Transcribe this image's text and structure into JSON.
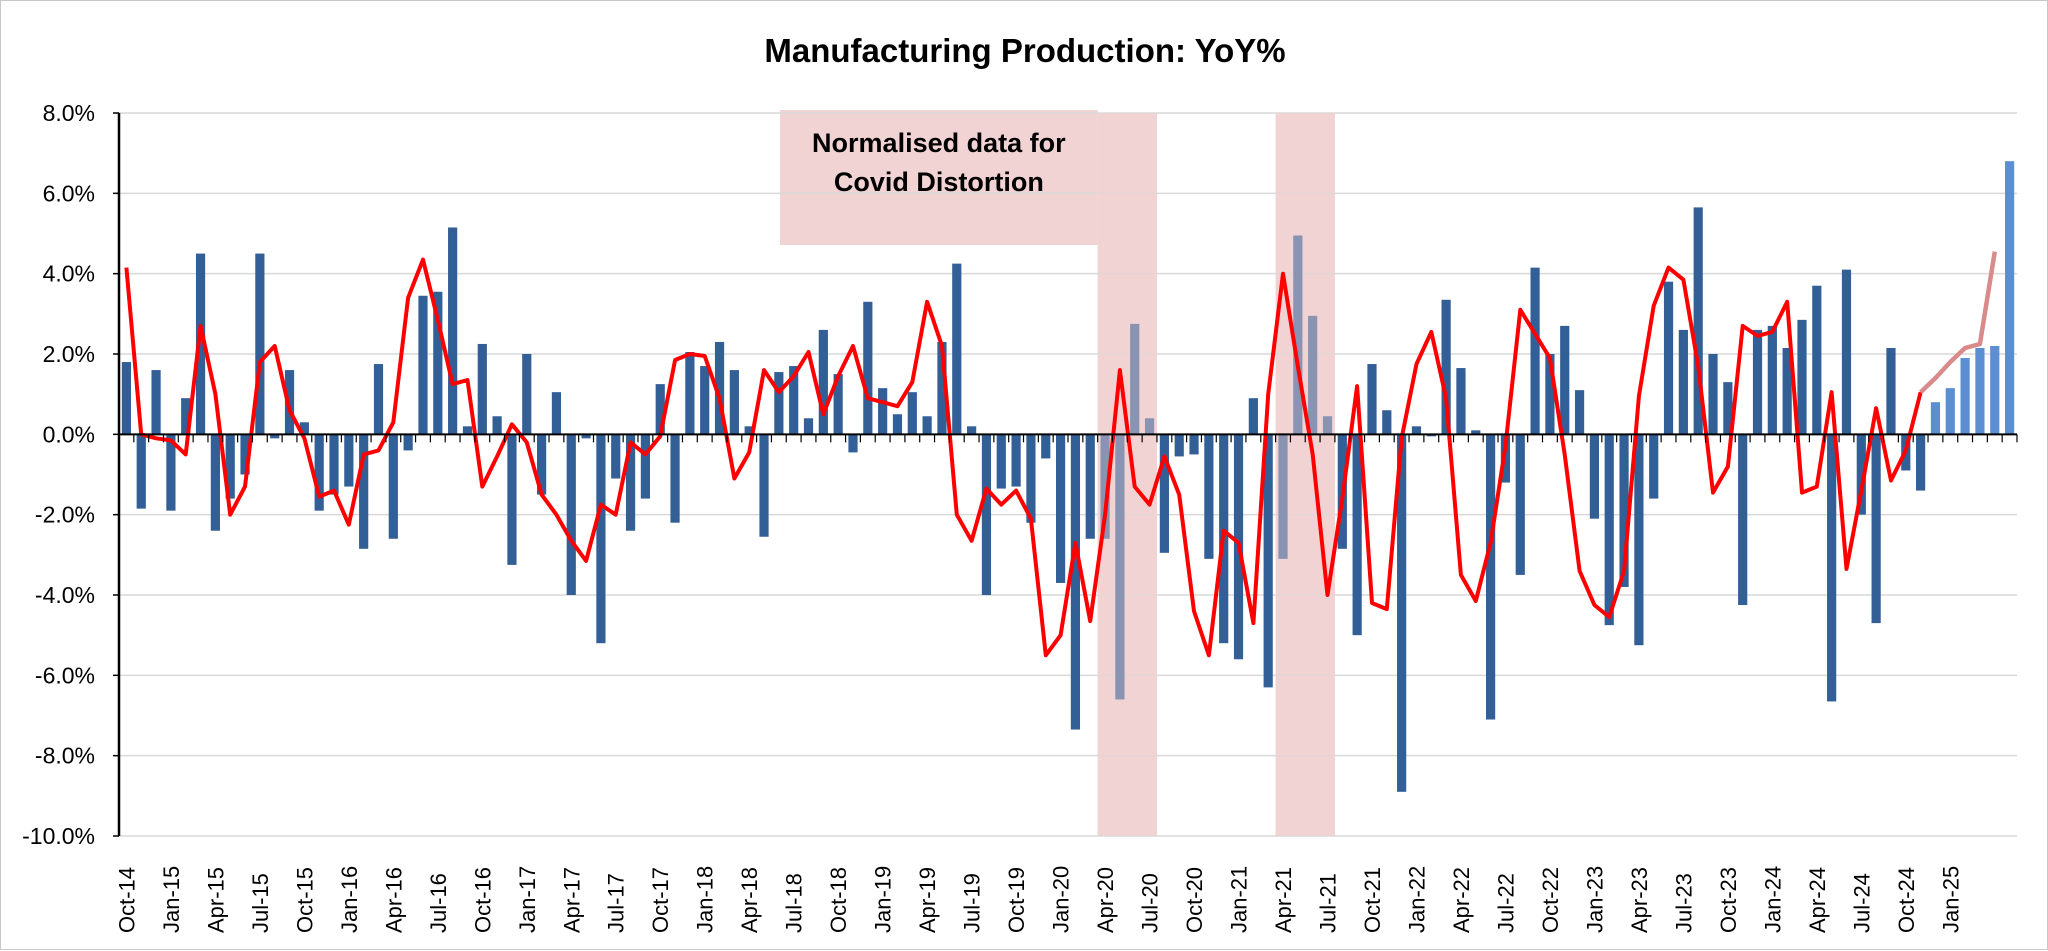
{
  "chart_data": {
    "type": "bar",
    "title": "Manufacturing Production: YoY%",
    "xlabel": "",
    "ylabel": "",
    "ylim": [
      -10.0,
      8.0
    ],
    "y_ticks": [
      "8.0%",
      "6.0%",
      "4.0%",
      "2.0%",
      "0.0%",
      "-2.0%",
      "-4.0%",
      "-6.0%",
      "-8.0%",
      "-10.0%"
    ],
    "y_tick_values": [
      8,
      6,
      4,
      2,
      0,
      -2,
      -4,
      -6,
      -8,
      -10
    ],
    "grid": true,
    "legend": "none",
    "x_tick_labels": [
      "Oct-14",
      "Jan-15",
      "Apr-15",
      "Jul-15",
      "Oct-15",
      "Jan-16",
      "Apr-16",
      "Jul-16",
      "Oct-16",
      "Jan-17",
      "Apr-17",
      "Jul-17",
      "Oct-17",
      "Jan-18",
      "Apr-18",
      "Jul-18",
      "Oct-18",
      "Jan-19",
      "Apr-19",
      "Jul-19",
      "Oct-19",
      "Jan-20",
      "Apr-20",
      "Jul-20",
      "Oct-20",
      "Jan-21",
      "Apr-21",
      "Jul-21",
      "Oct-21",
      "Jan-22",
      "Apr-22",
      "Jul-22",
      "Oct-22",
      "Jan-23",
      "Apr-23",
      "Jul-23",
      "Oct-23",
      "Jan-24",
      "Apr-24",
      "Jul-24",
      "Oct-24",
      "Jan-25"
    ],
    "annotation": {
      "lines": [
        "Normalised data for",
        "Covid Distortion"
      ],
      "shaded_periods": [
        [
          "Apr-20",
          "Jul-20"
        ],
        [
          "Apr-21",
          "Jul-21"
        ]
      ]
    },
    "series": [
      {
        "type": "bar",
        "values": [
          1.8,
          -1.85,
          1.6,
          -1.9,
          0.9,
          4.5,
          -2.4,
          -1.6,
          -1.0,
          4.5,
          -0.1,
          1.6,
          0.3,
          -1.9,
          -1.5,
          -1.3,
          -2.85,
          1.75,
          -2.6,
          -0.4,
          3.45,
          3.55,
          5.15,
          0.2,
          2.25,
          0.45,
          -3.25,
          2.0,
          -1.5,
          1.05,
          -4.0,
          -0.1,
          -5.2,
          -1.1,
          -2.4,
          -1.6,
          1.25,
          -2.2,
          2.05,
          1.7,
          2.3,
          1.6,
          0.2,
          -2.55,
          1.55,
          1.7,
          0.4,
          2.6,
          1.5,
          -0.45,
          3.3,
          1.15,
          0.5,
          1.05,
          0.45,
          2.3,
          4.25,
          0.2,
          -4.0,
          -1.35,
          -1.3,
          -2.2,
          -0.6,
          -3.7,
          -7.35,
          -2.6,
          -2.6,
          -6.6,
          2.75,
          0.4,
          -2.95,
          -0.55,
          -0.5,
          -3.1,
          -5.2,
          -5.6,
          0.9,
          -6.3,
          -3.1,
          4.95,
          2.95,
          0.45,
          -2.85,
          -5.0,
          1.75,
          0.6,
          -8.9,
          0.2,
          -0.05,
          3.35,
          1.65,
          0.1,
          -7.1,
          -1.2,
          -3.5,
          4.15,
          2.0,
          2.7,
          1.1,
          -2.1,
          -4.75,
          -3.8,
          -5.25,
          -1.6,
          3.8,
          2.6,
          5.65,
          2.0,
          1.3,
          -4.25,
          2.6,
          2.7,
          2.15,
          2.85,
          3.7,
          -6.65,
          4.1,
          -2.0,
          -4.7,
          2.15,
          -0.9,
          -1.4,
          0.8,
          1.15,
          1.9,
          2.15,
          2.2,
          6.8
        ]
      },
      {
        "type": "line",
        "values": [
          4.15,
          0.0,
          -0.1,
          -0.15,
          -0.5,
          2.7,
          1.0,
          -2.0,
          -1.3,
          1.8,
          2.2,
          0.6,
          -0.1,
          -1.55,
          -1.4,
          -2.25,
          -0.5,
          -0.4,
          0.3,
          3.4,
          4.35,
          2.85,
          1.25,
          1.35,
          -1.3,
          -0.55,
          0.25,
          -0.2,
          -1.5,
          -2.0,
          -2.65,
          -3.15,
          -1.75,
          -2.0,
          -0.2,
          -0.5,
          -0.05,
          1.85,
          2.0,
          1.95,
          0.9,
          -1.1,
          -0.45,
          1.6,
          1.05,
          1.45,
          2.05,
          0.5,
          1.45,
          2.2,
          0.9,
          0.8,
          0.7,
          1.3,
          3.3,
          2.2,
          -2.0,
          -2.65,
          -1.35,
          -1.75,
          -1.4,
          -2.1,
          -5.5,
          -5.0,
          -2.7,
          -4.65,
          -2.0,
          1.6,
          -1.3,
          -1.75,
          -0.55,
          -1.5,
          -4.4,
          -5.5,
          -2.4,
          -2.7,
          -4.7,
          1.0,
          4.0,
          1.7,
          -0.5,
          -4.0,
          -1.6,
          1.2,
          -4.2,
          -4.35,
          -0.1,
          1.75,
          2.55,
          0.9,
          -3.5,
          -4.15,
          -2.7,
          -0.3,
          3.1,
          2.5,
          1.9,
          -0.5,
          -3.4,
          -4.25,
          -4.55,
          -3.4,
          0.95,
          3.2,
          4.15,
          3.85,
          1.7,
          -1.45,
          -0.8,
          2.7,
          2.45,
          2.55,
          3.3,
          -1.45,
          -1.3,
          1.05,
          -3.35,
          -1.4,
          0.65,
          -1.15,
          -0.4,
          1.05,
          1.4,
          1.8,
          2.15,
          2.25,
          4.55
        ]
      }
    ]
  }
}
